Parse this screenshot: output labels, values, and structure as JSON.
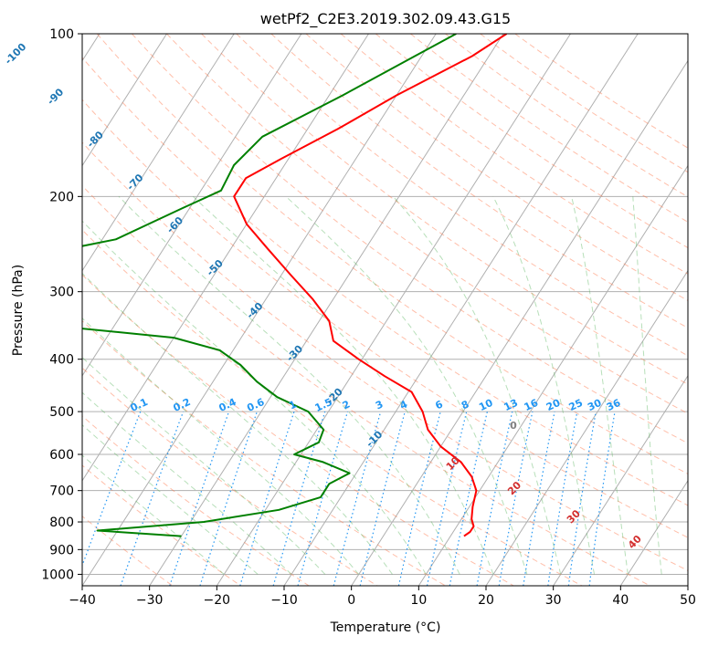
{
  "chart_data": {
    "type": "line",
    "title": "wetPf2_C2E3.2019.302.09.43.G15",
    "xlabel": "Temperature (°C)",
    "ylabel": "Pressure (hPa)",
    "xlim": [
      -40,
      50
    ],
    "ylim": [
      1050,
      100
    ],
    "y_scale": "log",
    "grid": true,
    "x_ticks": [
      -40,
      -30,
      -20,
      -10,
      0,
      10,
      20,
      30,
      40,
      50
    ],
    "y_ticks": [
      100,
      200,
      300,
      400,
      500,
      600,
      700,
      800,
      900,
      1000
    ],
    "colors": {
      "temperature": "#ff0000",
      "dewpoint": "#008000",
      "isotherm_label": "#1f77b4",
      "mixing_ratio": "#2196f3",
      "dry_adiabat": "#ff7043",
      "moist_adiabat": "#4caf50",
      "moist_label": "#d32f2f",
      "wet_bulb_zero": "#808080",
      "grid": "#b0b0b0"
    },
    "isotherm_labels": [
      -100,
      -90,
      -80,
      -70,
      -60,
      -50,
      -40,
      -30,
      -20,
      -10
    ],
    "mixing_ratio_labels": [
      "0.1",
      "0.2",
      "0.4",
      "0.6",
      "1",
      "1.5",
      "2",
      "3",
      "4",
      "6",
      "8",
      "10",
      "13",
      "16",
      "20",
      "25",
      "30",
      "36"
    ],
    "moist_adiabat_labels": [
      "10",
      "20",
      "30",
      "40"
    ],
    "wet_bulb_label": "0",
    "series": [
      {
        "name": "Temperature",
        "points": [
          {
            "p": 100,
            "t": -29.5
          },
          {
            "p": 110,
            "t": -32.5
          },
          {
            "p": 130,
            "t": -40
          },
          {
            "p": 150,
            "t": -45.5
          },
          {
            "p": 170,
            "t": -51
          },
          {
            "p": 185,
            "t": -54.5
          },
          {
            "p": 200,
            "t": -54.5
          },
          {
            "p": 225,
            "t": -50
          },
          {
            "p": 250,
            "t": -44.5
          },
          {
            "p": 280,
            "t": -38.5
          },
          {
            "p": 310,
            "t": -33
          },
          {
            "p": 340,
            "t": -28.5
          },
          {
            "p": 370,
            "t": -26
          },
          {
            "p": 400,
            "t": -20.5
          },
          {
            "p": 430,
            "t": -15
          },
          {
            "p": 460,
            "t": -9.5
          },
          {
            "p": 500,
            "t": -6
          },
          {
            "p": 540,
            "t": -3.5
          },
          {
            "p": 580,
            "t": 0
          },
          {
            "p": 620,
            "t": 4.5
          },
          {
            "p": 660,
            "t": 7.5
          },
          {
            "p": 700,
            "t": 9.5
          },
          {
            "p": 750,
            "t": 10.5
          },
          {
            "p": 790,
            "t": 11.5
          },
          {
            "p": 815,
            "t": 12.5
          },
          {
            "p": 835,
            "t": 12.5
          },
          {
            "p": 850,
            "t": 12
          }
        ]
      },
      {
        "name": "Dewpoint",
        "points": [
          {
            "p": 100,
            "t": -37
          },
          {
            "p": 110,
            "t": -41
          },
          {
            "p": 130,
            "t": -48
          },
          {
            "p": 155,
            "t": -56
          },
          {
            "p": 175,
            "t": -57.5
          },
          {
            "p": 195,
            "t": -57
          },
          {
            "p": 210,
            "t": -61
          },
          {
            "p": 240,
            "t": -68
          },
          {
            "p": 265,
            "t": -83
          },
          {
            "p": 285,
            "t": -96
          },
          {
            "p": 305,
            "t": -93
          },
          {
            "p": 320,
            "t": -89
          },
          {
            "p": 330,
            "t": -95
          },
          {
            "p": 345,
            "t": -71
          },
          {
            "p": 365,
            "t": -50
          },
          {
            "p": 385,
            "t": -42
          },
          {
            "p": 410,
            "t": -37.5
          },
          {
            "p": 440,
            "t": -33.5
          },
          {
            "p": 470,
            "t": -29
          },
          {
            "p": 500,
            "t": -23
          },
          {
            "p": 540,
            "t": -19
          },
          {
            "p": 570,
            "t": -18.5
          },
          {
            "p": 600,
            "t": -21
          },
          {
            "p": 620,
            "t": -16
          },
          {
            "p": 650,
            "t": -11
          },
          {
            "p": 680,
            "t": -13
          },
          {
            "p": 720,
            "t": -13
          },
          {
            "p": 760,
            "t": -18
          },
          {
            "p": 800,
            "t": -28
          },
          {
            "p": 830,
            "t": -43
          },
          {
            "p": 850,
            "t": -30
          }
        ]
      }
    ]
  }
}
